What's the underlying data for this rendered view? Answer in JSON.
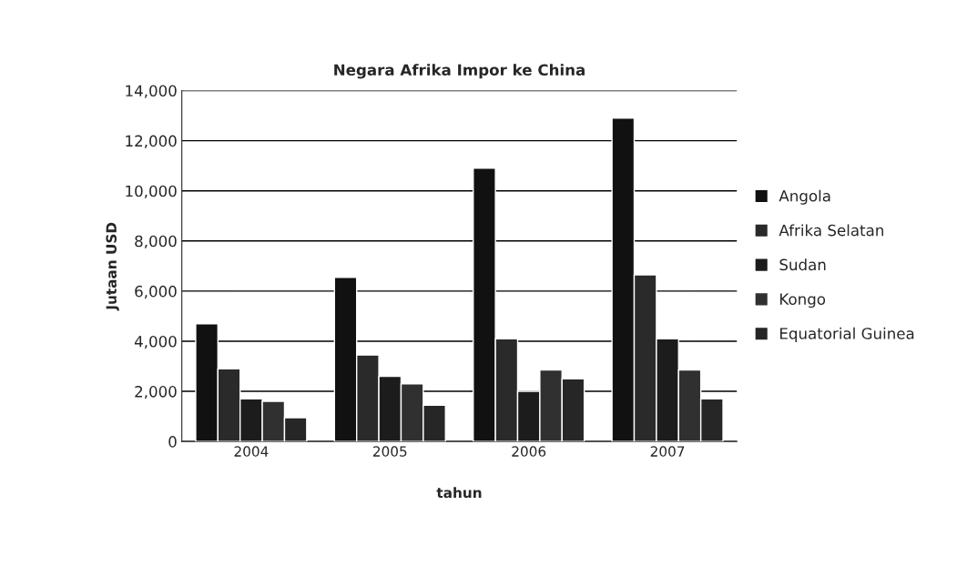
{
  "chart_data": {
    "type": "bar",
    "title": "Negara Afrika Impor ke China",
    "xlabel": "tahun",
    "ylabel": "Jutaan USD",
    "categories": [
      "2004",
      "2005",
      "2006",
      "2007"
    ],
    "series": [
      {
        "name": "Angola",
        "color": "#111111",
        "values": [
          4700,
          6550,
          10900,
          12900
        ]
      },
      {
        "name": "Afrika Selatan",
        "color": "#2a2a2a",
        "values": [
          2900,
          3450,
          4100,
          6650
        ]
      },
      {
        "name": "Sudan",
        "color": "#1c1c1c",
        "values": [
          1700,
          2600,
          2000,
          4100
        ]
      },
      {
        "name": "Kongo",
        "color": "#303030",
        "values": [
          1600,
          2300,
          2850,
          2850
        ]
      },
      {
        "name": "Equatorial Guinea",
        "color": "#262626",
        "values": [
          950,
          1450,
          2500,
          1700
        ]
      }
    ],
    "ylim": [
      0,
      14000
    ],
    "yticks": [
      {
        "value": 0,
        "label": "0"
      },
      {
        "value": 2000,
        "label": "2,000"
      },
      {
        "value": 4000,
        "label": "4,000"
      },
      {
        "value": 6000,
        "label": "6,000"
      },
      {
        "value": 8000,
        "label": "8,000"
      },
      {
        "value": 10000,
        "label": "10,000"
      },
      {
        "value": 12000,
        "label": "12,000"
      },
      {
        "value": 14000,
        "label": "14,000"
      }
    ],
    "grid": "y",
    "legend": "right"
  }
}
